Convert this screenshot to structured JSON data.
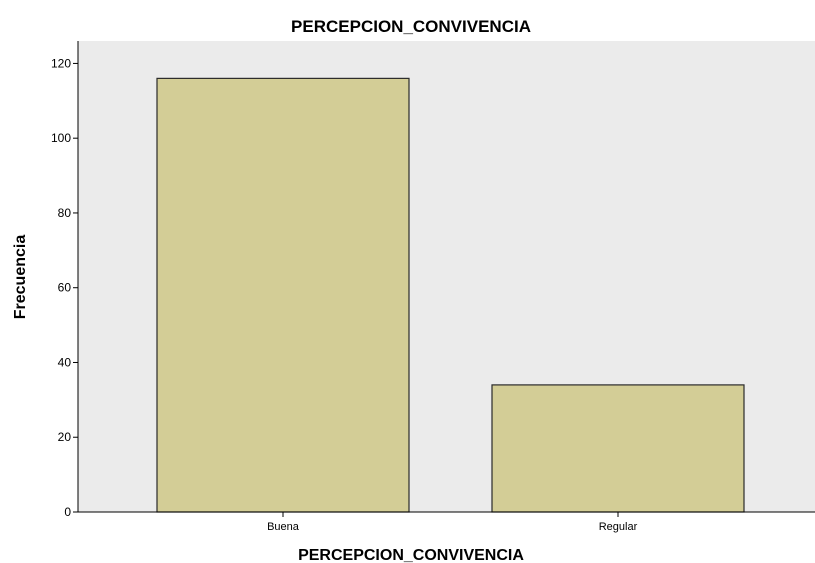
{
  "chart_data": {
    "type": "bar",
    "title": "PERCEPCION_CONVIVENCIA",
    "xlabel": "PERCEPCION_CONVIVENCIA",
    "ylabel": "Frecuencia",
    "categories": [
      "Buena",
      "Regular"
    ],
    "values": [
      116,
      34
    ],
    "ylim": [
      0,
      126
    ],
    "yticks": [
      0,
      20,
      40,
      60,
      80,
      100,
      120
    ],
    "grid": false,
    "legend": "none",
    "colors": {
      "bar_fill": "#d3cd96",
      "bar_stroke": "#2a2a2a",
      "plot_background": "#ebebeb",
      "axis": "#000000"
    }
  }
}
